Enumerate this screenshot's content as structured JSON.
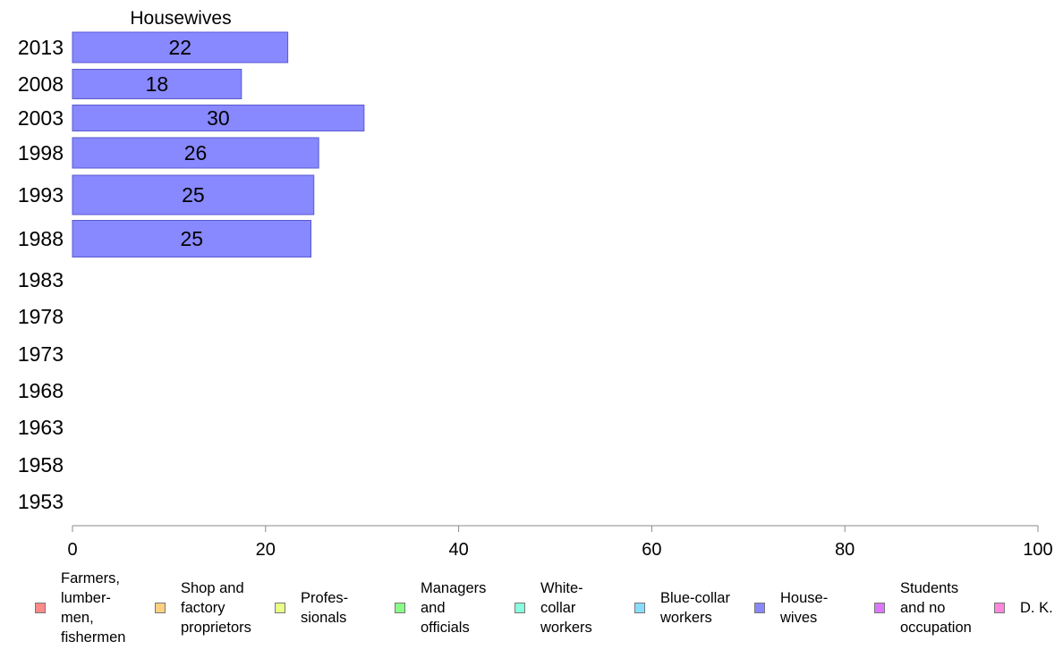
{
  "chart_data": {
    "type": "bar",
    "orientation": "horizontal",
    "title": "Housewives",
    "categories": [
      "2013",
      "2008",
      "2003",
      "1998",
      "1993",
      "1988",
      "1983",
      "1978",
      "1973",
      "1968",
      "1963",
      "1958",
      "1953"
    ],
    "series": [
      {
        "name": "House-\nwives",
        "values": [
          22.3,
          17.5,
          30.2,
          25.5,
          25.0,
          24.7,
          null,
          null,
          null,
          null,
          null,
          null,
          null
        ]
      }
    ],
    "data_labels": [
      "22",
      "18",
      "30",
      "26",
      "25",
      "25",
      "",
      "",
      "",
      "",
      "",
      "",
      ""
    ],
    "xlim": [
      0,
      100
    ],
    "xticks": [
      0,
      20,
      40,
      60,
      80,
      100
    ],
    "xtick_labels": [
      "0",
      "20",
      "40",
      "60",
      "80",
      "100"
    ],
    "grid": false,
    "legend_position": "bottom",
    "bar_color": "#8888ff",
    "legend": [
      {
        "label": "Farmers,\nlumber-\nmen,\nfishermen",
        "color": "#ff8a8a"
      },
      {
        "label": "Shop and\nfactory\nproprietors",
        "color": "#ffd080"
      },
      {
        "label": "Profes-\nsionals",
        "color": "#e8ff88"
      },
      {
        "label": "Managers\nand\nofficials",
        "color": "#88ff88"
      },
      {
        "label": "White-\ncollar\nworkers",
        "color": "#88ffdd"
      },
      {
        "label": "Blue-collar\nworkers",
        "color": "#88ddff"
      },
      {
        "label": "House-\nwives",
        "color": "#8888ff"
      },
      {
        "label": "Students\nand no\noccupation",
        "color": "#dd77ff"
      },
      {
        "label": "D. K.",
        "color": "#ff88dd"
      }
    ]
  }
}
